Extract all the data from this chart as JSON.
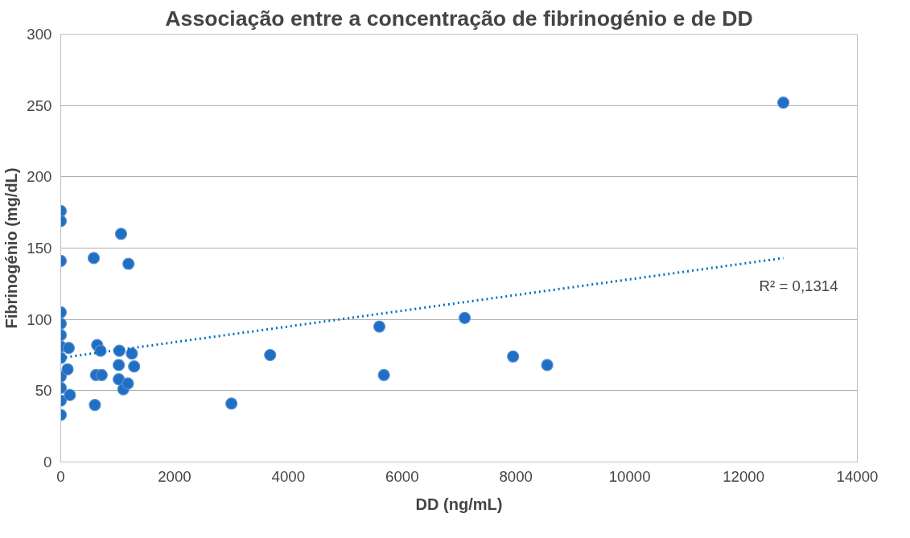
{
  "chart_data": {
    "type": "scatter",
    "title": "Associação entre a concentração de fibrinogénio e de DD",
    "xlabel": "DD (ng/mL)",
    "ylabel": "Fibrinogénio (mg/dL)",
    "xlim": [
      0,
      14000
    ],
    "ylim": [
      0,
      300
    ],
    "xticks": [
      0,
      2000,
      4000,
      6000,
      8000,
      10000,
      12000,
      14000
    ],
    "yticks": [
      0,
      50,
      100,
      150,
      200,
      250,
      300
    ],
    "grid": "y",
    "legend": false,
    "marker": "circle",
    "series": [
      {
        "color": "#1f6fc5",
        "x": [
          0,
          0,
          0,
          0,
          0,
          0,
          0,
          0,
          0,
          0,
          0,
          0,
          120,
          140,
          160,
          580,
          600,
          620,
          640,
          700,
          720,
          1020,
          1020,
          1030,
          1060,
          1100,
          1180,
          1190,
          1250,
          1290,
          3000,
          3680,
          5600,
          5680,
          7100,
          7950,
          8550,
          12700
        ],
        "values": [
          176,
          169,
          141,
          105,
          97,
          89,
          81,
          73,
          60,
          52,
          43,
          33,
          65,
          80,
          47,
          143,
          40,
          61,
          82,
          78,
          61,
          68,
          58,
          78,
          160,
          51,
          55,
          139,
          76,
          67,
          41,
          75,
          95,
          61,
          101,
          74,
          68,
          252
        ]
      },
      {
        "type": "line",
        "color": "#0070c0",
        "line_style": "dotted",
        "marker": "none",
        "x": [
          0,
          12700
        ],
        "values": [
          73,
          143
        ]
      }
    ],
    "annotations": [
      "R² = 0,1314"
    ]
  }
}
